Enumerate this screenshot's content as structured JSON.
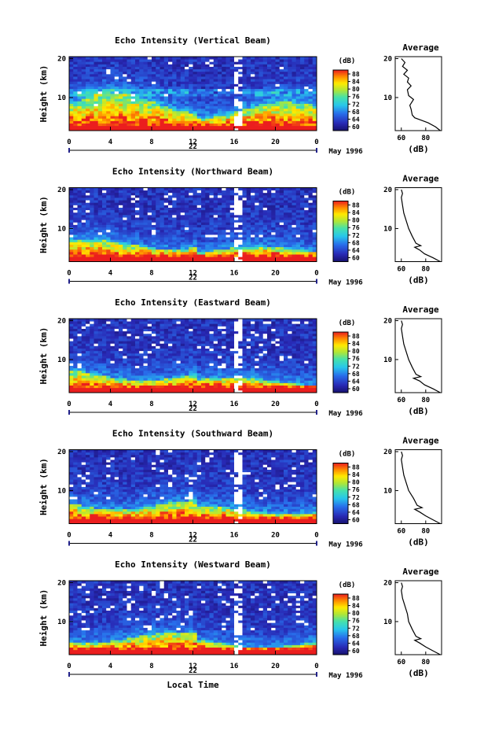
{
  "chart_data": [
    {
      "type": "heatmap",
      "title": "Echo Intensity (Vertical Beam)",
      "ylabel": "Height (km)",
      "yticks": [
        "20",
        "10"
      ],
      "xticks": [
        "0",
        "4",
        "8",
        "12",
        "16",
        "20",
        "0"
      ],
      "xlim": [
        0,
        24
      ],
      "ylim": [
        1.5,
        20.5
      ],
      "day_label": "22",
      "date_label": "May 1996",
      "colorbar": {
        "label": "(dB)",
        "ticks": [
          "88",
          "84",
          "80",
          "76",
          "72",
          "68",
          "64",
          "60"
        ],
        "range": [
          60,
          90
        ]
      },
      "profile": {
        "title": "Average",
        "xlabel": "(dB)",
        "xticks": [
          "60",
          "80"
        ],
        "yticks": [
          "20",
          "10"
        ],
        "xlim": [
          55,
          93
        ]
      },
      "params": {
        "top": 86,
        "base": 8.5,
        "scale": 1.0,
        "wave": 3.0,
        "contam": 0.02,
        "gap": 0.08
      },
      "avg_profile": [
        [
          1.5,
          92
        ],
        [
          2.5,
          88
        ],
        [
          3.5,
          82
        ],
        [
          4.2,
          76
        ],
        [
          4.8,
          71
        ],
        [
          5.5,
          69
        ],
        [
          7,
          68
        ],
        [
          8,
          67
        ],
        [
          9.5,
          70
        ],
        [
          10.5,
          66
        ],
        [
          12,
          65
        ],
        [
          13,
          68
        ],
        [
          14,
          65
        ],
        [
          15,
          66
        ],
        [
          16,
          62
        ],
        [
          17,
          65
        ],
        [
          18,
          61
        ],
        [
          19,
          63
        ],
        [
          20,
          60
        ]
      ]
    },
    {
      "type": "heatmap",
      "title": "Echo Intensity (Northward Beam)",
      "ylabel": "Height (km)",
      "yticks": [
        "20",
        "10"
      ],
      "xticks": [
        "0",
        "4",
        "8",
        "12",
        "16",
        "20",
        "0"
      ],
      "xlim": [
        0,
        24
      ],
      "ylim": [
        1.5,
        20.5
      ],
      "day_label": "22",
      "date_label": "May 1996",
      "colorbar": {
        "label": "(dB)",
        "ticks": [
          "88",
          "84",
          "80",
          "76",
          "72",
          "68",
          "64",
          "60"
        ],
        "range": [
          60,
          90
        ]
      },
      "profile": {
        "title": "Average",
        "xlabel": "(dB)",
        "xticks": [
          "60",
          "80"
        ],
        "yticks": [
          "20",
          "10"
        ],
        "xlim": [
          55,
          93
        ]
      },
      "params": {
        "top": 90,
        "base": 6.0,
        "scale": 0.8,
        "wave": 1.5,
        "contam": 0.05,
        "gap": 0.12
      },
      "avg_profile": [
        [
          1.5,
          92
        ],
        [
          2.5,
          86
        ],
        [
          3.5,
          79
        ],
        [
          4.5,
          75
        ],
        [
          5.2,
          71
        ],
        [
          5.6,
          76
        ],
        [
          6.2,
          72
        ],
        [
          8,
          69
        ],
        [
          10,
          66
        ],
        [
          12,
          64
        ],
        [
          14,
          62
        ],
        [
          16,
          61
        ],
        [
          18,
          60
        ],
        [
          19,
          61
        ],
        [
          20,
          60
        ]
      ]
    },
    {
      "type": "heatmap",
      "title": "Echo Intensity (Eastward Beam)",
      "ylabel": "Height (km)",
      "yticks": [
        "20",
        "10"
      ],
      "xticks": [
        "0",
        "4",
        "8",
        "12",
        "16",
        "20",
        "0"
      ],
      "xlim": [
        0,
        24
      ],
      "ylim": [
        1.5,
        20.5
      ],
      "day_label": "22",
      "date_label": "May 1996",
      "colorbar": {
        "label": "(dB)",
        "ticks": [
          "88",
          "84",
          "80",
          "76",
          "72",
          "68",
          "64",
          "60"
        ],
        "range": [
          60,
          90
        ]
      },
      "profile": {
        "title": "Average",
        "xlabel": "(dB)",
        "xticks": [
          "60",
          "80"
        ],
        "yticks": [
          "20",
          "10"
        ],
        "xlim": [
          55,
          93
        ]
      },
      "params": {
        "top": 90,
        "base": 6.0,
        "scale": 0.8,
        "wave": 1.5,
        "contam": 0.06,
        "gap": 0.12
      },
      "avg_profile": [
        [
          1.5,
          92
        ],
        [
          2.5,
          86
        ],
        [
          3.5,
          79
        ],
        [
          4.5,
          75
        ],
        [
          5.2,
          70
        ],
        [
          5.6,
          76
        ],
        [
          6.2,
          72
        ],
        [
          8,
          69
        ],
        [
          10,
          66
        ],
        [
          12,
          64
        ],
        [
          14,
          62
        ],
        [
          16,
          61
        ],
        [
          18,
          60
        ],
        [
          19,
          61
        ],
        [
          20,
          60
        ]
      ]
    },
    {
      "type": "heatmap",
      "title": "Echo Intensity (Southward Beam)",
      "ylabel": "Height (km)",
      "yticks": [
        "20",
        "10"
      ],
      "xticks": [
        "0",
        "4",
        "8",
        "12",
        "16",
        "20",
        "0"
      ],
      "xlim": [
        0,
        24
      ],
      "ylim": [
        1.5,
        20.5
      ],
      "day_label": "22",
      "date_label": "May 1996",
      "colorbar": {
        "label": "(dB)",
        "ticks": [
          "88",
          "84",
          "80",
          "76",
          "72",
          "68",
          "64",
          "60"
        ],
        "range": [
          60,
          90
        ]
      },
      "profile": {
        "title": "Average",
        "xlabel": "(dB)",
        "xticks": [
          "60",
          "80"
        ],
        "yticks": [
          "20",
          "10"
        ],
        "xlim": [
          55,
          93
        ]
      },
      "params": {
        "top": 90,
        "base": 6.5,
        "scale": 0.85,
        "wave": 1.5,
        "contam": 0.06,
        "gap": 0.12
      },
      "avg_profile": [
        [
          1.5,
          92
        ],
        [
          2.5,
          86
        ],
        [
          3.5,
          80
        ],
        [
          4.5,
          75
        ],
        [
          5.2,
          71
        ],
        [
          5.6,
          77
        ],
        [
          6.2,
          73
        ],
        [
          8,
          70
        ],
        [
          10,
          66
        ],
        [
          12,
          64
        ],
        [
          14,
          62
        ],
        [
          16,
          61
        ],
        [
          18,
          60
        ],
        [
          19,
          61
        ],
        [
          20,
          60
        ]
      ]
    },
    {
      "type": "heatmap",
      "title": "Echo Intensity (Westward Beam)",
      "ylabel": "Height (km)",
      "yticks": [
        "20",
        "10"
      ],
      "xticks": [
        "0",
        "4",
        "8",
        "12",
        "16",
        "20",
        "0"
      ],
      "xlim": [
        0,
        24
      ],
      "ylim": [
        1.5,
        20.5
      ],
      "day_label": "22",
      "date_label": "May 1996",
      "xlabel": "Local Time",
      "colorbar": {
        "label": "(dB)",
        "ticks": [
          "88",
          "84",
          "80",
          "76",
          "72",
          "68",
          "64",
          "60"
        ],
        "range": [
          60,
          90
        ]
      },
      "profile": {
        "title": "Average",
        "xlabel": "(dB)",
        "xticks": [
          "60",
          "80"
        ],
        "yticks": [
          "20",
          "10"
        ],
        "xlim": [
          55,
          93
        ]
      },
      "params": {
        "top": 90,
        "base": 6.0,
        "scale": 0.8,
        "wave": 1.5,
        "contam": 0.07,
        "gap": 0.12
      },
      "avg_profile": [
        [
          1.5,
          92
        ],
        [
          2.5,
          86
        ],
        [
          3.5,
          80
        ],
        [
          4.5,
          75
        ],
        [
          5.2,
          71
        ],
        [
          5.6,
          76
        ],
        [
          6.2,
          72
        ],
        [
          8,
          69
        ],
        [
          10,
          66
        ],
        [
          12,
          65
        ],
        [
          14,
          63
        ],
        [
          16,
          61
        ],
        [
          18,
          60
        ],
        [
          19,
          61
        ],
        [
          20,
          60
        ]
      ]
    }
  ]
}
